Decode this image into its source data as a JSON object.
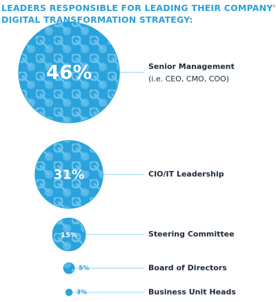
{
  "chart_data": {
    "type": "bubble",
    "title": [
      "LEADERS RESPONSIBLE FOR LEADING THEIR COMPANY'S",
      "DIGITAL TRANSFORMATION STRATEGY:"
    ],
    "categories": [
      "Senior Management",
      "CIO/IT Leadership",
      "Steering Committee",
      "Board of Directors",
      "Business Unit Heads"
    ],
    "category_notes": [
      "(i.e. CEO, CMO, COO)",
      null,
      null,
      null,
      null
    ],
    "values": [
      46,
      31,
      15,
      5,
      3
    ],
    "value_labels": [
      "46%",
      "31%",
      "15%",
      "5%",
      "3%"
    ],
    "color": "#2aa3dd"
  }
}
